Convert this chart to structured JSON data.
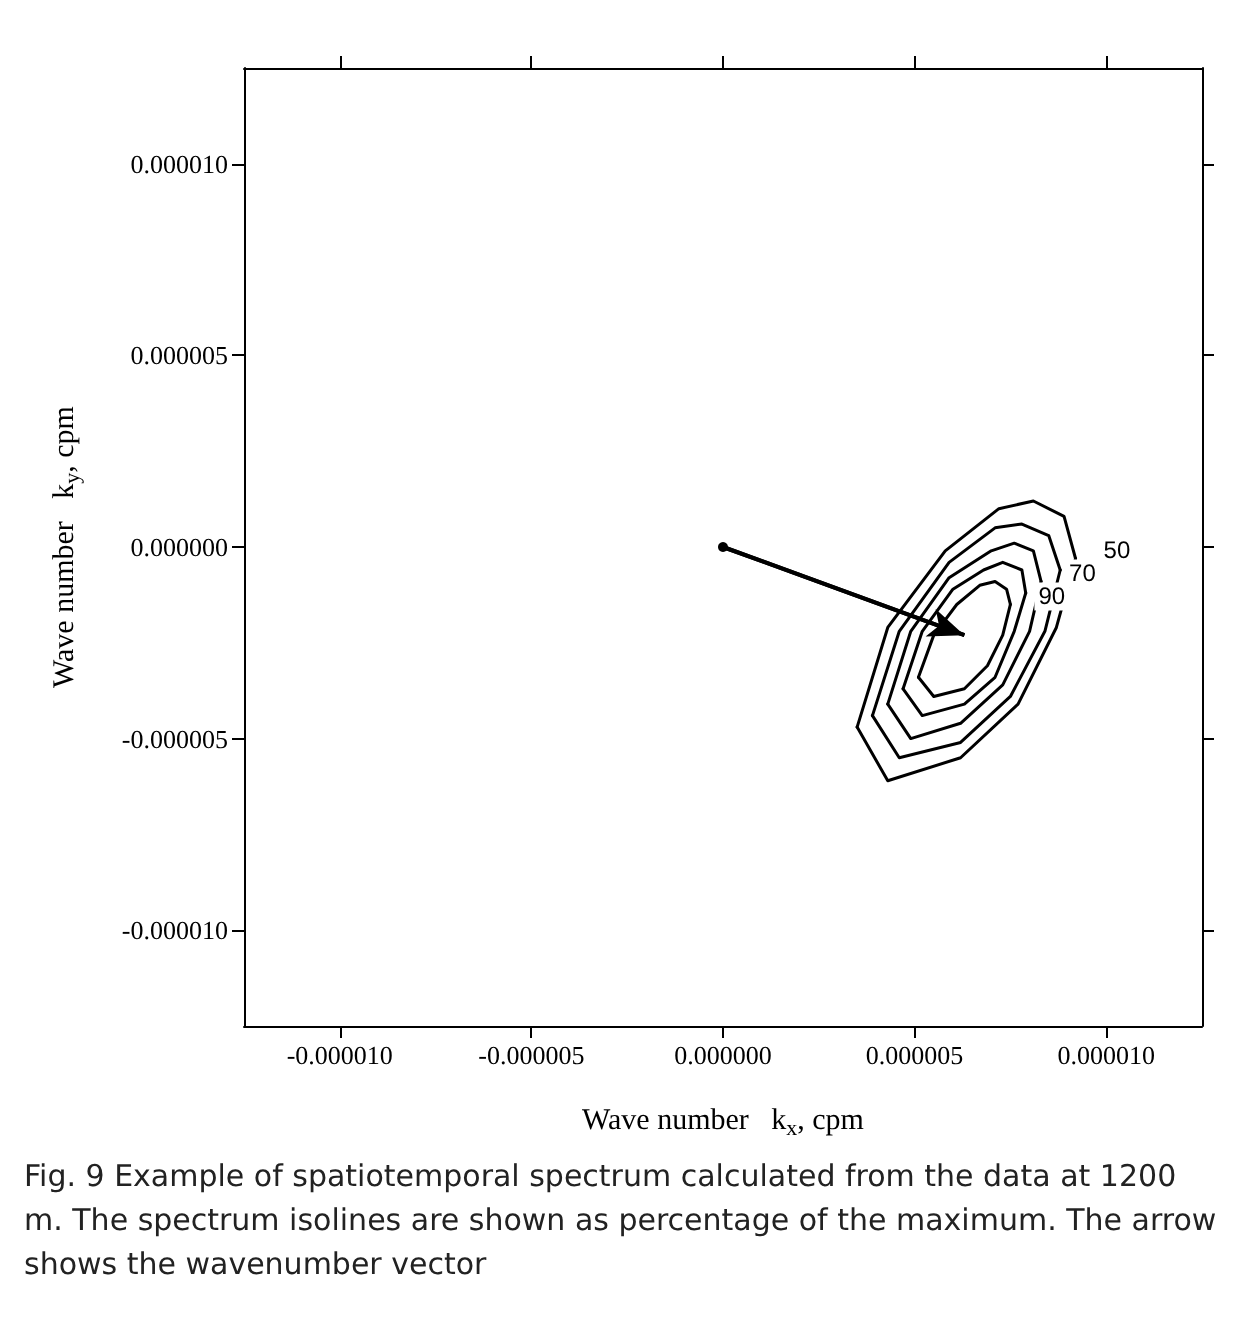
{
  "chart_data": {
    "type": "line",
    "xlabel": "Wave number   k$_{x}$, cpm",
    "ylabel": "Wave number   k$_{y}$, cpm",
    "xlim": [
      -1.25e-05,
      1.25e-05
    ],
    "ylim": [
      -1.25e-05,
      1.25e-05
    ],
    "xticks": [
      {
        "value": -1e-05,
        "label": "-0.000010"
      },
      {
        "value": -5e-06,
        "label": "-0.000005"
      },
      {
        "value": 0,
        "label": "0.000000"
      },
      {
        "value": 5e-06,
        "label": "0.000005"
      },
      {
        "value": 1e-05,
        "label": "0.000010"
      }
    ],
    "yticks": [
      {
        "value": -1e-05,
        "label": "-0.000010"
      },
      {
        "value": -5e-06,
        "label": "-0.000005"
      },
      {
        "value": 0,
        "label": "0.000000"
      },
      {
        "value": 5e-06,
        "label": "0.000005"
      },
      {
        "value": 1e-05,
        "label": "0.000010"
      }
    ],
    "grid": false,
    "legend": false,
    "marker": "none",
    "line_style": "solid",
    "series": [
      {
        "name": "50",
        "color": "#000000",
        "x": [
          3.5e-06,
          4.3e-06,
          5.8e-06,
          7.2e-06,
          8.1e-06,
          8.9e-06,
          9.2e-06
        ],
        "values": [
          -4.7e-06,
          -2.1e-06,
          -1e-07,
          1e-06,
          1.2e-06,
          8e-07,
          -3e-07
        ]
      },
      {
        "color": "#000000",
        "x": [
          3.5e-06,
          4.3e-06,
          6.2e-06,
          7.7e-06,
          8.7e-06,
          9.2e-06
        ],
        "values": [
          -4.7e-06,
          -6.1e-06,
          -5.5e-06,
          -4.1e-06,
          -2.1e-06,
          -3e-07
        ]
      },
      {
        "color": "#000000",
        "x": [
          3.9e-06,
          4.6e-06,
          5.9e-06,
          7.1e-06,
          7.8e-06,
          8.5e-06,
          8.8e-06
        ],
        "values": [
          -4.4e-06,
          -2.2e-06,
          -4e-07,
          5e-07,
          6e-07,
          3e-07,
          -6e-07
        ]
      },
      {
        "color": "#000000",
        "x": [
          3.9e-06,
          4.6e-06,
          6.2e-06,
          7.5e-06,
          8.4e-06,
          8.8e-06
        ],
        "values": [
          -4.4e-06,
          -5.5e-06,
          -5.1e-06,
          -3.9e-06,
          -2.2e-06,
          -6e-07
        ]
      },
      {
        "name": "70",
        "color": "#000000",
        "x": [
          4.3e-06,
          4.9e-06,
          5.9e-06,
          7e-06,
          7.6e-06,
          8.1e-06,
          8.3e-06
        ],
        "values": [
          -4.1e-06,
          -2.2e-06,
          -8e-07,
          -1e-07,
          1e-07,
          -1e-07,
          -9e-07
        ]
      },
      {
        "color": "#000000",
        "x": [
          4.3e-06,
          4.9e-06,
          6.2e-06,
          7.3e-06,
          8e-06,
          8.3e-06
        ],
        "values": [
          -4.1e-06,
          -5e-06,
          -4.6e-06,
          -3.6e-06,
          -2.2e-06,
          -9e-07
        ]
      },
      {
        "color": "#000000",
        "x": [
          4.7e-06,
          5.2e-06,
          6e-06,
          6.8e-06,
          7.3e-06,
          7.8e-06,
          7.9e-06
        ],
        "values": [
          -3.7e-06,
          -2.2e-06,
          -1.1e-06,
          -6e-07,
          -4e-07,
          -6e-07,
          -1.2e-06
        ]
      },
      {
        "color": "#000000",
        "x": [
          4.7e-06,
          5.2e-06,
          6.3e-06,
          7.1e-06,
          7.6e-06,
          7.9e-06
        ],
        "values": [
          -3.7e-06,
          -4.4e-06,
          -4.1e-06,
          -3.4e-06,
          -2.2e-06,
          -1.2e-06
        ]
      },
      {
        "name": "90",
        "color": "#000000",
        "x": [
          5.1e-06,
          5.5e-06,
          6.1e-06,
          6.7e-06,
          7.1e-06,
          7.4e-06,
          7.5e-06
        ],
        "values": [
          -3.4e-06,
          -2.3e-06,
          -1.5e-06,
          -1e-06,
          -9e-07,
          -1.1e-06,
          -1.5e-06
        ]
      },
      {
        "color": "#000000",
        "x": [
          5.1e-06,
          5.5e-06,
          6.3e-06,
          6.9e-06,
          7.3e-06,
          7.5e-06
        ],
        "values": [
          -3.4e-06,
          -3.9e-06,
          -3.7e-06,
          -3.1e-06,
          -2.3e-06,
          -1.5e-06
        ]
      },
      {
        "marker": "circle",
        "color": "#000000",
        "x": [
          0,
          6.3e-06
        ],
        "values": [
          0,
          -2.3e-06
        ]
      }
    ],
    "annotations": [
      "Fig. 9  Example of spatiotemporal spectrum calculated from the data at 1200 m. The spectrum isolines are shown as percentage of the maximum. The arrow shows the wavenumber vector"
    ]
  }
}
